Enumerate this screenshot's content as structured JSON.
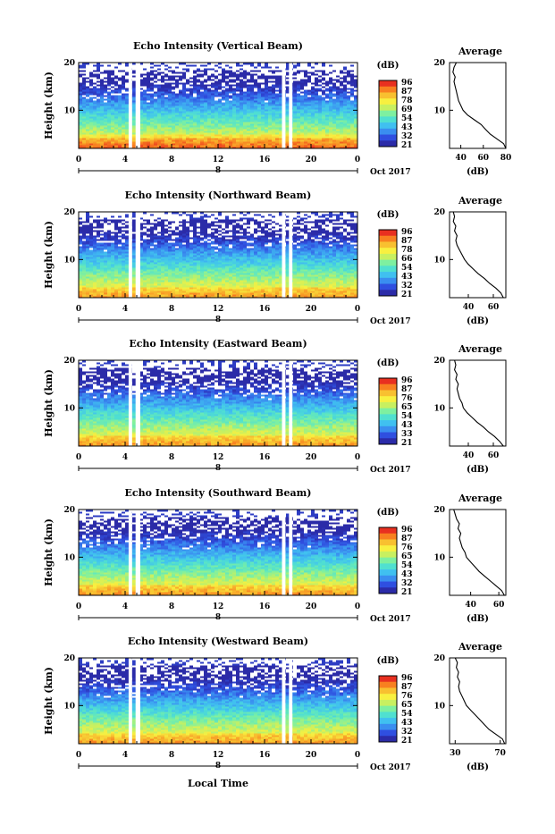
{
  "colors": {
    "colorbar": [
      "#2b2ba8",
      "#2f4fe0",
      "#3a8ef0",
      "#40c0f0",
      "#50e0d0",
      "#7ef0a0",
      "#c8f060",
      "#f8f040",
      "#f8c030",
      "#f88020",
      "#e83020"
    ],
    "profile_line": "#000000",
    "gap_fill": "#ffffff"
  },
  "layout_labels": {
    "date_label": "Oct 2017",
    "day_marker": "8",
    "x_axis_title": "Local Time"
  },
  "chart_data": [
    {
      "type": "heatmap",
      "title": "Echo Intensity (Vertical Beam)",
      "ylabel": "Height (km)",
      "xlabel": "Local Time",
      "x_ticks": [
        "0",
        "4",
        "8",
        "12",
        "16",
        "20",
        "0"
      ],
      "y_ticks": [
        "10",
        "20"
      ],
      "ylim": [
        2,
        20
      ],
      "xlim": [
        0,
        24
      ],
      "data_gaps_hours": [
        [
          4.3,
          4.6
        ],
        [
          4.9,
          5.3
        ],
        [
          17.5,
          17.8
        ],
        [
          18.1,
          18.4
        ]
      ],
      "colorbar_unit": "(dB)",
      "colorbar_ticks": [
        "96",
        "87",
        "78",
        "69",
        "54",
        "43",
        "32",
        "21"
      ],
      "profile": {
        "title": "Average",
        "xlabel": "(dB)",
        "x_ticks": [
          "40",
          "60",
          "80"
        ],
        "xlim": [
          30,
          80
        ],
        "y_ticks": [
          "10",
          "20"
        ],
        "ylim": [
          2,
          20
        ],
        "points": [
          [
            80,
            2
          ],
          [
            78,
            3
          ],
          [
            72,
            4
          ],
          [
            66,
            5
          ],
          [
            62,
            6
          ],
          [
            58,
            7
          ],
          [
            52,
            8
          ],
          [
            46,
            9
          ],
          [
            42,
            10
          ],
          [
            40,
            11
          ],
          [
            38,
            12
          ],
          [
            37,
            13
          ],
          [
            36,
            14
          ],
          [
            35,
            15
          ],
          [
            34,
            16
          ],
          [
            35,
            17
          ],
          [
            33,
            18
          ],
          [
            34,
            19
          ],
          [
            36,
            20
          ]
        ]
      }
    },
    {
      "type": "heatmap",
      "title": "Echo Intensity (Northward Beam)",
      "ylabel": "Height (km)",
      "xlabel": "Local Time",
      "x_ticks": [
        "0",
        "4",
        "8",
        "12",
        "16",
        "20",
        "0"
      ],
      "y_ticks": [
        "10",
        "20"
      ],
      "ylim": [
        2,
        20
      ],
      "xlim": [
        0,
        24
      ],
      "data_gaps_hours": [
        [
          4.3,
          4.6
        ],
        [
          4.9,
          5.3
        ],
        [
          17.5,
          17.8
        ],
        [
          18.1,
          18.4
        ]
      ],
      "colorbar_unit": "(dB)",
      "colorbar_ticks": [
        "96",
        "87",
        "78",
        "66",
        "54",
        "43",
        "32",
        "21"
      ],
      "profile": {
        "title": "Average",
        "xlabel": "(dB)",
        "x_ticks": [
          "40",
          "60"
        ],
        "xlim": [
          25,
          70
        ],
        "y_ticks": [
          "10",
          "20"
        ],
        "ylim": [
          2,
          20
        ],
        "points": [
          [
            68,
            2
          ],
          [
            66,
            3
          ],
          [
            62,
            4
          ],
          [
            57,
            5
          ],
          [
            53,
            6
          ],
          [
            48,
            7
          ],
          [
            44,
            8
          ],
          [
            40,
            9
          ],
          [
            37,
            10
          ],
          [
            35,
            11
          ],
          [
            33,
            12
          ],
          [
            31,
            13
          ],
          [
            30,
            14
          ],
          [
            31,
            15
          ],
          [
            29,
            16
          ],
          [
            30,
            17
          ],
          [
            28,
            18
          ],
          [
            29,
            19
          ],
          [
            28,
            20
          ]
        ]
      }
    },
    {
      "type": "heatmap",
      "title": "Echo Intensity (Eastward Beam)",
      "ylabel": "Height (km)",
      "xlabel": "Local Time",
      "x_ticks": [
        "0",
        "4",
        "8",
        "12",
        "16",
        "20",
        "0"
      ],
      "y_ticks": [
        "10",
        "20"
      ],
      "ylim": [
        2,
        20
      ],
      "xlim": [
        0,
        24
      ],
      "data_gaps_hours": [
        [
          4.3,
          4.6
        ],
        [
          4.9,
          5.3
        ],
        [
          17.5,
          17.8
        ],
        [
          18.1,
          18.4
        ]
      ],
      "colorbar_unit": "(dB)",
      "colorbar_ticks": [
        "96",
        "87",
        "76",
        "65",
        "54",
        "43",
        "33",
        "21"
      ],
      "profile": {
        "title": "Average",
        "xlabel": "(dB)",
        "x_ticks": [
          "40",
          "60"
        ],
        "xlim": [
          25,
          70
        ],
        "y_ticks": [
          "10",
          "20"
        ],
        "ylim": [
          2,
          20
        ],
        "points": [
          [
            68,
            2
          ],
          [
            65,
            3
          ],
          [
            61,
            4
          ],
          [
            56,
            5
          ],
          [
            52,
            6
          ],
          [
            47,
            7
          ],
          [
            43,
            8
          ],
          [
            39,
            9
          ],
          [
            36,
            10
          ],
          [
            35,
            11
          ],
          [
            33,
            12
          ],
          [
            32,
            13
          ],
          [
            31,
            14
          ],
          [
            32,
            15
          ],
          [
            30,
            16
          ],
          [
            31,
            17
          ],
          [
            29,
            18
          ],
          [
            30,
            19
          ],
          [
            29,
            20
          ]
        ]
      }
    },
    {
      "type": "heatmap",
      "title": "Echo Intensity (Southward Beam)",
      "ylabel": "Height (km)",
      "xlabel": "Local Time",
      "x_ticks": [
        "0",
        "4",
        "8",
        "12",
        "16",
        "20",
        "0"
      ],
      "y_ticks": [
        "10",
        "20"
      ],
      "ylim": [
        2,
        20
      ],
      "xlim": [
        0,
        24
      ],
      "data_gaps_hours": [
        [
          4.3,
          4.6
        ],
        [
          4.9,
          5.3
        ],
        [
          17.5,
          17.8
        ],
        [
          18.1,
          18.4
        ]
      ],
      "colorbar_unit": "(dB)",
      "colorbar_ticks": [
        "96",
        "87",
        "76",
        "65",
        "54",
        "43",
        "32",
        "21"
      ],
      "profile": {
        "title": "Average",
        "xlabel": "(dB)",
        "x_ticks": [
          "40",
          "60"
        ],
        "xlim": [
          25,
          65
        ],
        "y_ticks": [
          "10",
          "20"
        ],
        "ylim": [
          2,
          20
        ],
        "points": [
          [
            64,
            2
          ],
          [
            62,
            3
          ],
          [
            58,
            4
          ],
          [
            54,
            5
          ],
          [
            50,
            6
          ],
          [
            46,
            7
          ],
          [
            43,
            8
          ],
          [
            40,
            9
          ],
          [
            37,
            10
          ],
          [
            36,
            11
          ],
          [
            34,
            12
          ],
          [
            33,
            13
          ],
          [
            32,
            14
          ],
          [
            33,
            15
          ],
          [
            31,
            16
          ],
          [
            32,
            17
          ],
          [
            30,
            18
          ],
          [
            29,
            19
          ],
          [
            28,
            20
          ]
        ]
      }
    },
    {
      "type": "heatmap",
      "title": "Echo Intensity (Westward Beam)",
      "ylabel": "Height (km)",
      "xlabel": "Local Time",
      "x_ticks": [
        "0",
        "4",
        "8",
        "12",
        "16",
        "20",
        "0"
      ],
      "y_ticks": [
        "10",
        "20"
      ],
      "ylim": [
        2,
        20
      ],
      "xlim": [
        0,
        24
      ],
      "data_gaps_hours": [
        [
          4.3,
          4.6
        ],
        [
          4.9,
          5.3
        ],
        [
          17.5,
          17.8
        ],
        [
          18.1,
          18.4
        ]
      ],
      "colorbar_unit": "(dB)",
      "colorbar_ticks": [
        "96",
        "87",
        "76",
        "65",
        "54",
        "43",
        "32",
        "21"
      ],
      "profile": {
        "title": "Average",
        "xlabel": "(dB)",
        "x_ticks": [
          "30",
          "70"
        ],
        "xlim": [
          25,
          75
        ],
        "y_ticks": [
          "10",
          "20"
        ],
        "ylim": [
          2,
          20
        ],
        "points": [
          [
            74,
            2
          ],
          [
            72,
            3
          ],
          [
            66,
            4
          ],
          [
            60,
            5
          ],
          [
            56,
            6
          ],
          [
            52,
            7
          ],
          [
            48,
            8
          ],
          [
            44,
            9
          ],
          [
            40,
            10
          ],
          [
            38,
            11
          ],
          [
            36,
            12
          ],
          [
            34,
            13
          ],
          [
            33,
            14
          ],
          [
            34,
            15
          ],
          [
            32,
            16
          ],
          [
            33,
            17
          ],
          [
            31,
            18
          ],
          [
            32,
            19
          ],
          [
            30,
            20
          ]
        ]
      }
    }
  ]
}
